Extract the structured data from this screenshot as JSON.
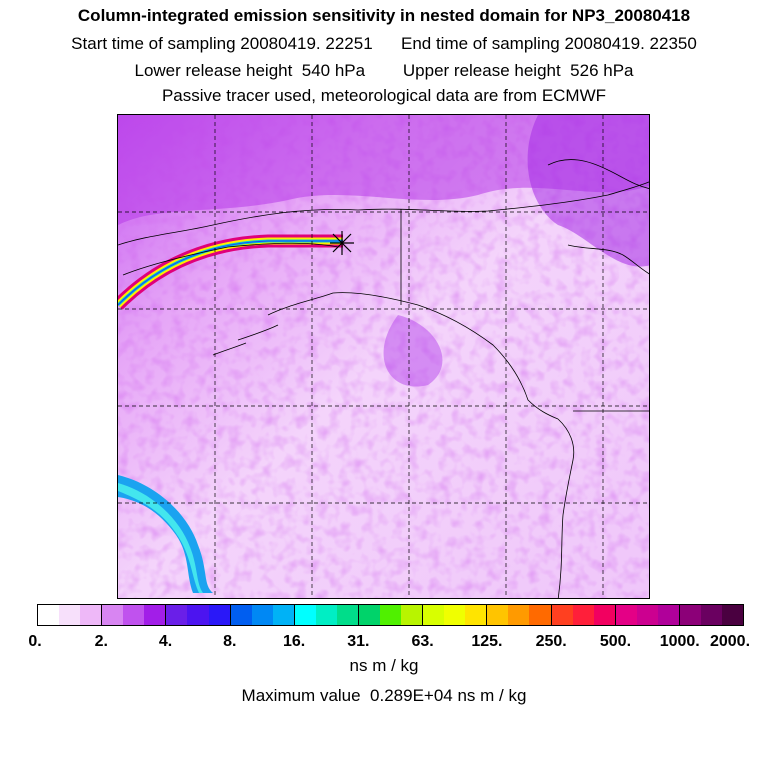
{
  "header": {
    "title": "Column-integrated emission sensitivity in nested domain for NP3_20080418",
    "line2": "Start time of sampling 20080419. 22251      End time of sampling 20080419. 22350",
    "line3": "Lower release height  540 hPa        Upper release height  526 hPa",
    "line4": "Passive tracer used, meteorological data are from ECMWF"
  },
  "map": {
    "background_colors": [
      "#e9a0f7",
      "#c050ee",
      "#f6d6fb"
    ],
    "release_marker": "asterisk-marker",
    "trajectory_colors": [
      "#e0007a",
      "#ffee00",
      "#00d0d0",
      "#2040ff"
    ]
  },
  "colorbar": {
    "segment_colors": [
      [
        "#ffffff",
        "#f7e0fb",
        "#eeb8f8"
      ],
      [
        "#d885f2",
        "#c052ee",
        "#a21ee8"
      ],
      [
        "#6a1fe8",
        "#4c14f0",
        "#2a18f8"
      ],
      [
        "#005ef0",
        "#0088f4",
        "#00b2f6"
      ],
      [
        "#00ffff",
        "#00eec4",
        "#00dd8a"
      ],
      [
        "#00d36a",
        "#50f000",
        "#b8f400"
      ],
      [
        "#d8ff00",
        "#f0ff00",
        "#ffe400"
      ],
      [
        "#ffc400",
        "#ff9a00",
        "#ff6a00"
      ],
      [
        "#ff4020",
        "#ff1f3a",
        "#f20060"
      ],
      [
        "#e40086",
        "#cc0090",
        "#b0009a"
      ],
      [
        "#8c0078",
        "#6a0060",
        "#4a0040"
      ]
    ],
    "tick_labels": [
      "0.",
      "2.",
      "4.",
      "8.",
      "16.",
      "31.",
      "63.",
      "125.",
      "250.",
      "500.",
      "1000.",
      "2000."
    ],
    "units": "ns m / kg",
    "max_value_text": "Maximum value  0.289E+04 ns m / kg"
  }
}
